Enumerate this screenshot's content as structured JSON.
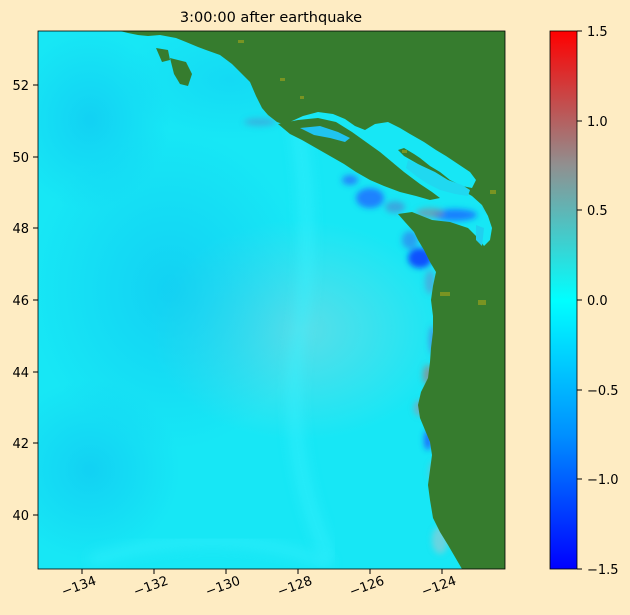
{
  "title": "3:00:00 after earthquake",
  "x_ticks": [
    "−134",
    "−132",
    "−130",
    "−128",
    "−126",
    "−124"
  ],
  "y_ticks": [
    "52",
    "50",
    "48",
    "46",
    "44",
    "42",
    "40"
  ],
  "colorbar_ticks": [
    "1.5",
    "1.0",
    "0.5",
    "0.0",
    "−0.5",
    "−1.0",
    "−1.5"
  ],
  "colors": {
    "background": "#feecc3",
    "land": "#367c2e",
    "ocean_base": "#17e7f5",
    "colormap": [
      "#0000ff",
      "#00a0ff",
      "#00ffff",
      "#a08080",
      "#ff0000"
    ]
  },
  "map": {
    "lon_range": [
      -135.0,
      -122.0
    ],
    "lat_range": [
      38.5,
      53.5
    ],
    "colorbar_range": [
      -1.5,
      1.5
    ]
  }
}
